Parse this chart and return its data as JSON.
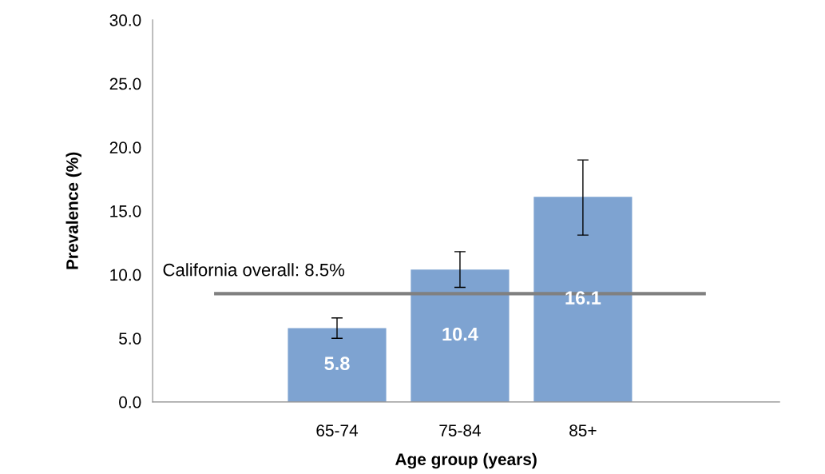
{
  "chart_data": {
    "type": "bar",
    "categories": [
      null,
      "65-74",
      "75-84",
      "85+",
      null
    ],
    "values": [
      null,
      5.8,
      10.4,
      16.1,
      null
    ],
    "errors": [
      null,
      [
        5.0,
        6.6
      ],
      [
        9.0,
        11.8
      ],
      [
        13.1,
        19.0
      ],
      null
    ],
    "color": "#7ea3d1",
    "data_labels": true,
    "xlabel": "Age group (years)",
    "ylabel": "Prevalence (%)",
    "ylim": [
      0,
      30
    ],
    "yticks": [
      {
        "value": 0,
        "label": "0.0"
      },
      {
        "value": 5,
        "label": "5.0"
      },
      {
        "value": 10,
        "label": "10.0"
      },
      {
        "value": 15,
        "label": "15.0"
      },
      {
        "value": 20,
        "label": "20.0"
      },
      {
        "value": 25,
        "label": "25.0"
      },
      {
        "value": 30,
        "label": "30.0"
      }
    ],
    "ref_lines": [
      {
        "axis": "y",
        "value": 8.5,
        "label": "California overall: 8.5%",
        "color": "#808080"
      }
    ],
    "grid": false,
    "legend": false
  }
}
